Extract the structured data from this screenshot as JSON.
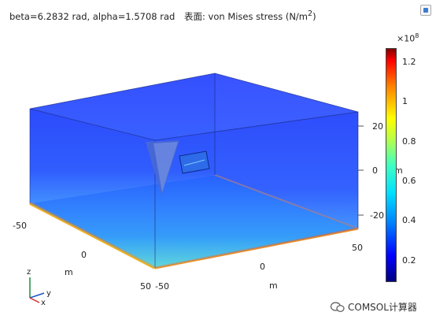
{
  "header": {
    "params": "beta=6.2832 rad, alpha=1.5708 rad",
    "quantity": "表面: von Mises stress (N/m",
    "quantity_sup": "2",
    "quantity_close": ")"
  },
  "colorbar": {
    "multiplier_base": "×10",
    "multiplier_exp": "8",
    "ticks": [
      "1.2",
      "1",
      "0.8",
      "0.6",
      "0.4",
      "0.2"
    ],
    "min": 0.1,
    "max": 1.27
  },
  "axes": {
    "x_ticks": [
      "-50",
      "0",
      "50"
    ],
    "x_label": "m",
    "y_ticks": [
      "-50",
      "0",
      "50"
    ],
    "y_label": "m",
    "z_ticks": [
      "20",
      "0",
      "-20"
    ],
    "z_label": "m"
  },
  "triad": {
    "z": "z",
    "y": "y",
    "x": "x"
  },
  "watermark": {
    "text": "COMSOL计算器",
    "icon": "wechat-icon"
  },
  "colors": {
    "background": "#ffffff",
    "accent": "#1a55ff"
  }
}
